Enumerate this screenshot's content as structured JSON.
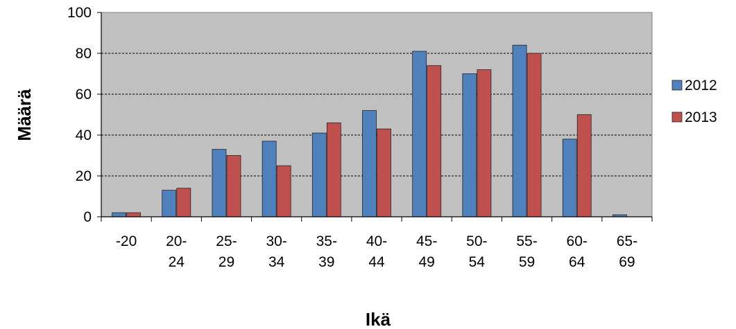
{
  "chart_data": {
    "type": "bar",
    "title": "",
    "xlabel": "Ikä",
    "ylabel": "Määrä",
    "ylim": [
      0,
      100
    ],
    "yticks": [
      "0",
      "20",
      "40",
      "60",
      "80",
      "100"
    ],
    "categories": [
      [
        "-20"
      ],
      [
        "20-",
        "24"
      ],
      [
        "25-",
        "29"
      ],
      [
        "30-",
        "34"
      ],
      [
        "35-",
        "39"
      ],
      [
        "40-",
        "44"
      ],
      [
        "45-",
        "49"
      ],
      [
        "50-",
        "54"
      ],
      [
        "55-",
        "59"
      ],
      [
        "60-",
        "64"
      ],
      [
        "65-",
        "69"
      ]
    ],
    "series": [
      {
        "name": "2012",
        "color": "#4F81BD",
        "values": [
          2,
          13,
          33,
          37,
          41,
          52,
          81,
          70,
          84,
          38,
          1
        ]
      },
      {
        "name": "2013",
        "color": "#C0504D",
        "values": [
          2,
          14,
          30,
          25,
          46,
          43,
          74,
          72,
          80,
          50,
          0
        ]
      }
    ],
    "grid": true,
    "plot_background": "#C0C0C0",
    "legend_position": "right"
  }
}
